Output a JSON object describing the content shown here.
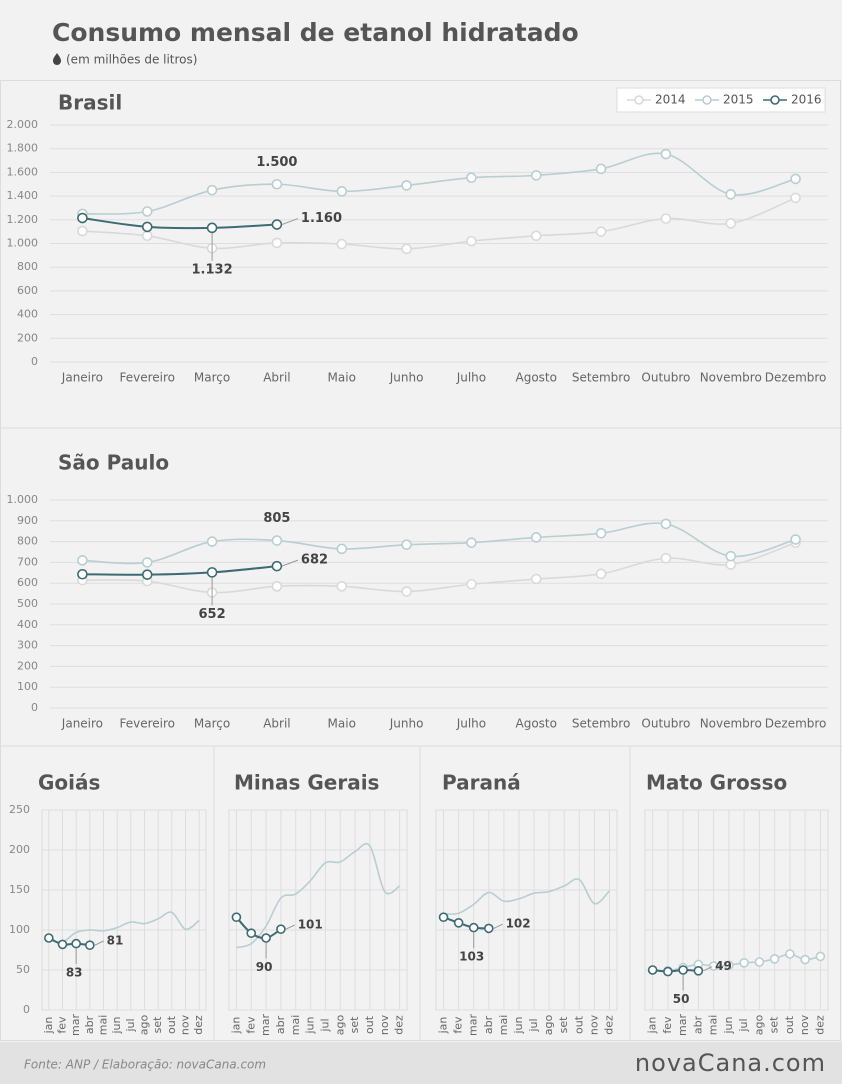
{
  "header": {
    "title": "Consumo mensal de etanol hidratado",
    "subtitle": "(em milhões de litros)"
  },
  "footer": {
    "source": "Fonte: ANP / Elaboração: novaCana.com",
    "logo": "novaCana.com"
  },
  "chart_data": [
    {
      "type": "line",
      "title": "Brasil",
      "categories": [
        "Janeiro",
        "Fevereiro",
        "Março",
        "Abril",
        "Maio",
        "Junho",
        "Julho",
        "Agosto",
        "Setembro",
        "Outubro",
        "Novembro",
        "Dezembro"
      ],
      "series": [
        {
          "name": "2014",
          "color": "#d9d9d9",
          "markers": true,
          "values": [
            1105,
            1065,
            960,
            1005,
            995,
            955,
            1020,
            1065,
            1100,
            1210,
            1170,
            1385
          ]
        },
        {
          "name": "2015",
          "color": "#b8ced1",
          "markers": true,
          "values": [
            1250,
            1270,
            1450,
            1500,
            1440,
            1490,
            1555,
            1575,
            1630,
            1755,
            1415,
            1545
          ],
          "value_labels": [
            null,
            null,
            null,
            "1.500",
            null,
            null,
            null,
            null,
            null,
            null,
            null,
            null
          ]
        },
        {
          "name": "2016",
          "color": "#3d6b73",
          "markers": true,
          "values": [
            1215,
            1140,
            1132,
            1160,
            null,
            null,
            null,
            null,
            null,
            null,
            null,
            null
          ],
          "value_labels": [
            null,
            null,
            "1.132",
            "1.160",
            null,
            null,
            null,
            null,
            null,
            null,
            null,
            null
          ]
        }
      ],
      "ylim": [
        0,
        2000
      ],
      "yticks": [
        0,
        200,
        400,
        600,
        800,
        {
          "value": 1000,
          "label": "1.000"
        },
        {
          "value": 1200,
          "label": "1.200"
        },
        {
          "value": 1400,
          "label": "1.400"
        },
        {
          "value": 1600,
          "label": "1.600"
        },
        {
          "value": 1800,
          "label": "1.800"
        },
        {
          "value": 2000,
          "label": "2.000"
        }
      ],
      "grid": true,
      "legend": "top-right"
    },
    {
      "type": "line",
      "title": "São Paulo",
      "categories": [
        "Janeiro",
        "Fevereiro",
        "Março",
        "Abril",
        "Maio",
        "Junho",
        "Julho",
        "Agosto",
        "Setembro",
        "Outubro",
        "Novembro",
        "Dezembro"
      ],
      "series": [
        {
          "color": "#d9d9d9",
          "markers": true,
          "values": [
            615,
            610,
            555,
            585,
            585,
            560,
            595,
            620,
            645,
            720,
            690,
            795
          ]
        },
        {
          "color": "#b8ced1",
          "markers": true,
          "values": [
            710,
            700,
            800,
            805,
            765,
            785,
            795,
            820,
            840,
            885,
            730,
            810
          ],
          "data_labels": [
            3
          ]
        },
        {
          "color": "#3d6b73",
          "markers": true,
          "values": [
            643,
            641,
            652,
            682,
            null,
            null,
            null,
            null,
            null,
            null,
            null,
            null
          ],
          "data_labels": [
            2,
            3
          ]
        }
      ],
      "ylim": [
        0,
        1000
      ],
      "yticks": [
        0,
        100,
        200,
        300,
        400,
        500,
        600,
        700,
        800,
        900,
        {
          "value": 1000,
          "label": "1.000"
        }
      ],
      "grid": true
    },
    {
      "type": "line",
      "title": "Goiás",
      "categories": [
        "jan",
        "fev",
        "mar",
        "abr",
        "mai",
        "jun",
        "jul",
        "ago",
        "set",
        "out",
        "nov",
        "dez"
      ],
      "series": [
        {
          "color": "#b8ced1",
          "markers": false,
          "values": [
            88,
            85,
            97,
            100,
            99,
            103,
            110,
            108,
            114,
            122,
            101,
            112
          ]
        },
        {
          "color": "#3d6b73",
          "markers": true,
          "values": [
            90,
            82,
            83,
            81,
            null,
            null,
            null,
            null,
            null,
            null,
            null,
            null
          ],
          "data_labels": [
            2,
            3
          ]
        }
      ],
      "ylim": [
        0,
        250
      ],
      "yticks": [
        0,
        50,
        100,
        150,
        200,
        250
      ],
      "grid": true,
      "vgrid": true
    },
    {
      "type": "line",
      "title": "Minas Gerais",
      "categories": [
        "jan",
        "fev",
        "mar",
        "abr",
        "mai",
        "jun",
        "jul",
        "ago",
        "set",
        "out",
        "nov",
        "dez"
      ],
      "series": [
        {
          "color": "#b8ced1",
          "markers": false,
          "values": [
            78,
            83,
            105,
            140,
            145,
            162,
            184,
            185,
            198,
            205,
            148,
            155
          ]
        },
        {
          "color": "#3d6b73",
          "markers": true,
          "values": [
            116,
            96,
            90,
            101,
            null,
            null,
            null,
            null,
            null,
            null,
            null,
            null
          ],
          "data_labels": [
            2,
            3
          ]
        }
      ],
      "ylim": [
        0,
        250
      ],
      "yticks": [
        0,
        50,
        100,
        150,
        200,
        250
      ],
      "ytick_labels": false,
      "grid": true,
      "vgrid": true
    },
    {
      "type": "line",
      "title": "Paraná",
      "categories": [
        "jan",
        "fev",
        "mar",
        "abr",
        "mai",
        "jun",
        "jul",
        "ago",
        "set",
        "out",
        "nov",
        "dez"
      ],
      "series": [
        {
          "color": "#b8ced1",
          "markers": false,
          "values": [
            120,
            121,
            132,
            147,
            136,
            139,
            146,
            148,
            155,
            163,
            133,
            149
          ]
        },
        {
          "color": "#3d6b73",
          "markers": true,
          "values": [
            116,
            109,
            103,
            102,
            null,
            null,
            null,
            null,
            null,
            null,
            null,
            null
          ],
          "data_labels": [
            2,
            3
          ]
        }
      ],
      "ylim": [
        0,
        250
      ],
      "yticks": [
        0,
        50,
        100,
        150,
        200,
        250
      ],
      "ytick_labels": false,
      "grid": true,
      "vgrid": true
    },
    {
      "type": "line",
      "title": "Mato Grosso",
      "categories": [
        "jan",
        "fev",
        "mar",
        "abr",
        "mai",
        "jun",
        "jul",
        "ago",
        "set",
        "out",
        "nov",
        "dez"
      ],
      "series": [
        {
          "color": "#b8ced1",
          "markers": true,
          "values": [
            50,
            49,
            53,
            57,
            55,
            56,
            59,
            60,
            64,
            70,
            63,
            67
          ]
        },
        {
          "color": "#3d6b73",
          "markers": true,
          "values": [
            50,
            48,
            50,
            49,
            null,
            null,
            null,
            null,
            null,
            null,
            null,
            null
          ],
          "data_labels": [
            2,
            3
          ]
        }
      ],
      "ylim": [
        0,
        250
      ],
      "yticks": [
        0,
        50,
        100,
        150,
        200,
        250
      ],
      "ytick_labels": false,
      "grid": true,
      "vgrid": true
    }
  ]
}
